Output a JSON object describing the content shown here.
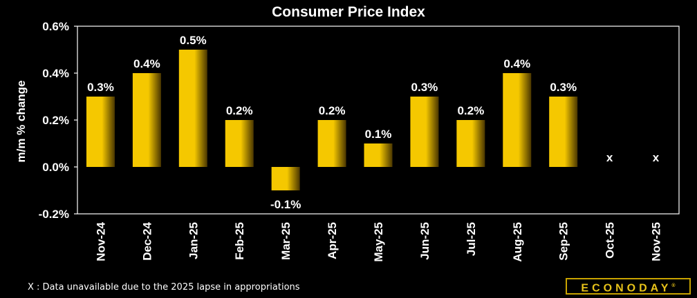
{
  "chart_data": {
    "type": "bar",
    "title": "Consumer Price Index",
    "ylabel": "m/m % change",
    "xlabel": "",
    "categories": [
      "Nov-24",
      "Dec-24",
      "Jan-25",
      "Feb-25",
      "Mar-25",
      "Apr-25",
      "May-25",
      "Jun-25",
      "Jul-25",
      "Aug-25",
      "Sep-25",
      "Oct-25",
      "Nov-25"
    ],
    "values": [
      0.3,
      0.4,
      0.5,
      0.2,
      -0.1,
      0.2,
      0.1,
      0.3,
      0.2,
      0.4,
      0.3,
      null,
      null
    ],
    "data_labels": [
      "0.3%",
      "0.4%",
      "0.5%",
      "0.2%",
      "-0.1%",
      "0.2%",
      "0.1%",
      "0.3%",
      "0.2%",
      "0.4%",
      "0.3%",
      "x",
      "x"
    ],
    "ylim": [
      -0.2,
      0.6
    ],
    "yticks": [
      -0.2,
      0.0,
      0.2,
      0.4,
      0.6
    ],
    "ytick_labels": [
      "-0.2%",
      "0.0%",
      "0.2%",
      "0.4%",
      "0.6%"
    ],
    "grid": false,
    "bar_color": "#f5c800",
    "bar_shade_color": "#4a3600"
  },
  "footnote": "X : Data unavailable due to the 2025 lapse in appropriations",
  "logo": {
    "text": "ECONODAY",
    "mark": "®"
  }
}
